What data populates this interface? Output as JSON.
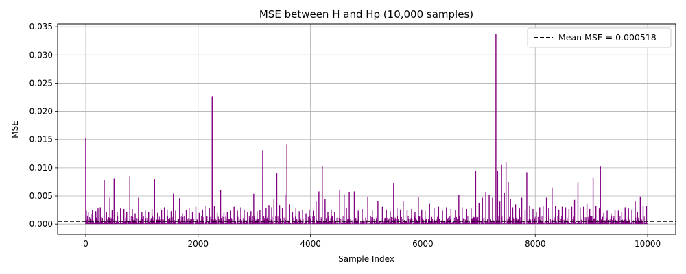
{
  "chart_data": {
    "type": "line",
    "title": "MSE between H and Hp (10,000 samples)",
    "xlabel": "Sample Index",
    "ylabel": "MSE",
    "xlim": [
      -500,
      10500
    ],
    "ylim": [
      -0.0018,
      0.0355
    ],
    "xticks": [
      0,
      2000,
      4000,
      6000,
      8000,
      10000
    ],
    "xtick_labels": [
      "0",
      "2000",
      "4000",
      "6000",
      "8000",
      "10000"
    ],
    "yticks": [
      0.0,
      0.005,
      0.01,
      0.015,
      0.02,
      0.025,
      0.03,
      0.035
    ],
    "ytick_labels": [
      "0.000",
      "0.005",
      "0.010",
      "0.015",
      "0.020",
      "0.025",
      "0.030",
      "0.035"
    ],
    "grid": true,
    "legend_position": "upper right",
    "series": [
      {
        "type": "line",
        "color": "#800080",
        "n_samples": 10000,
        "baseline_min": 5e-05,
        "baseline_max": 0.0015,
        "spikes": [
          [
            0,
            0.0153
          ],
          [
            10,
            0.0024
          ],
          [
            45,
            0.0021
          ],
          [
            95,
            0.0018
          ],
          [
            120,
            0.0025
          ],
          [
            180,
            0.0023
          ],
          [
            220,
            0.0028
          ],
          [
            260,
            0.003
          ],
          [
            330,
            0.0078
          ],
          [
            370,
            0.0022
          ],
          [
            430,
            0.0047
          ],
          [
            470,
            0.0025
          ],
          [
            505,
            0.0081
          ],
          [
            560,
            0.0021
          ],
          [
            620,
            0.0028
          ],
          [
            680,
            0.0027
          ],
          [
            730,
            0.0022
          ],
          [
            785,
            0.0085
          ],
          [
            830,
            0.0027
          ],
          [
            880,
            0.0019
          ],
          [
            940,
            0.0047
          ],
          [
            1000,
            0.0021
          ],
          [
            1060,
            0.0024
          ],
          [
            1120,
            0.0022
          ],
          [
            1180,
            0.0027
          ],
          [
            1225,
            0.0079
          ],
          [
            1280,
            0.002
          ],
          [
            1350,
            0.0025
          ],
          [
            1400,
            0.003
          ],
          [
            1450,
            0.0026
          ],
          [
            1520,
            0.0023
          ],
          [
            1560,
            0.0054
          ],
          [
            1600,
            0.0024
          ],
          [
            1670,
            0.0046
          ],
          [
            1720,
            0.0019
          ],
          [
            1790,
            0.0025
          ],
          [
            1840,
            0.0029
          ],
          [
            1900,
            0.0021
          ],
          [
            1960,
            0.0031
          ],
          [
            2020,
            0.002
          ],
          [
            2080,
            0.0026
          ],
          [
            2140,
            0.0033
          ],
          [
            2200,
            0.0029
          ],
          [
            2250,
            0.0227
          ],
          [
            2290,
            0.0033
          ],
          [
            2340,
            0.002
          ],
          [
            2400,
            0.0061
          ],
          [
            2460,
            0.002
          ],
          [
            2520,
            0.0021
          ],
          [
            2580,
            0.0024
          ],
          [
            2640,
            0.0031
          ],
          [
            2700,
            0.0024
          ],
          [
            2760,
            0.003
          ],
          [
            2820,
            0.0026
          ],
          [
            2880,
            0.0021
          ],
          [
            2940,
            0.0023
          ],
          [
            2990,
            0.0054
          ],
          [
            3050,
            0.0023
          ],
          [
            3100,
            0.0025
          ],
          [
            3150,
            0.0131
          ],
          [
            3210,
            0.0029
          ],
          [
            3260,
            0.0034
          ],
          [
            3310,
            0.003
          ],
          [
            3350,
            0.0044
          ],
          [
            3400,
            0.009
          ],
          [
            3450,
            0.0034
          ],
          [
            3500,
            0.0029
          ],
          [
            3550,
            0.0052
          ],
          [
            3580,
            0.0142
          ],
          [
            3630,
            0.0035
          ],
          [
            3680,
            0.0022
          ],
          [
            3740,
            0.0028
          ],
          [
            3800,
            0.0023
          ],
          [
            3860,
            0.0025
          ],
          [
            3920,
            0.0019
          ],
          [
            3980,
            0.0026
          ],
          [
            4050,
            0.0024
          ],
          [
            4100,
            0.004
          ],
          [
            4150,
            0.0058
          ],
          [
            4210,
            0.0103
          ],
          [
            4260,
            0.0045
          ],
          [
            4310,
            0.0022
          ],
          [
            4370,
            0.0026
          ],
          [
            4430,
            0.0021
          ],
          [
            4520,
            0.0061
          ],
          [
            4600,
            0.0053
          ],
          [
            4640,
            0.0029
          ],
          [
            4690,
            0.0057
          ],
          [
            4780,
            0.0058
          ],
          [
            4850,
            0.0024
          ],
          [
            4920,
            0.0027
          ],
          [
            5020,
            0.0049
          ],
          [
            5100,
            0.0025
          ],
          [
            5200,
            0.0041
          ],
          [
            5280,
            0.0031
          ],
          [
            5350,
            0.0026
          ],
          [
            5420,
            0.0023
          ],
          [
            5480,
            0.0073
          ],
          [
            5540,
            0.0028
          ],
          [
            5600,
            0.0026
          ],
          [
            5650,
            0.0041
          ],
          [
            5720,
            0.0025
          ],
          [
            5800,
            0.0027
          ],
          [
            5860,
            0.0022
          ],
          [
            5920,
            0.0048
          ],
          [
            5980,
            0.0026
          ],
          [
            6040,
            0.0024
          ],
          [
            6120,
            0.0036
          ],
          [
            6200,
            0.0028
          ],
          [
            6280,
            0.0031
          ],
          [
            6350,
            0.0024
          ],
          [
            6420,
            0.003
          ],
          [
            6500,
            0.0027
          ],
          [
            6580,
            0.0025
          ],
          [
            6640,
            0.0052
          ],
          [
            6700,
            0.003
          ],
          [
            6780,
            0.0027
          ],
          [
            6860,
            0.0028
          ],
          [
            6940,
            0.0094
          ],
          [
            7000,
            0.0038
          ],
          [
            7060,
            0.0047
          ],
          [
            7120,
            0.0056
          ],
          [
            7180,
            0.0052
          ],
          [
            7240,
            0.0047
          ],
          [
            7300,
            0.0337
          ],
          [
            7330,
            0.0095
          ],
          [
            7370,
            0.004
          ],
          [
            7400,
            0.0105
          ],
          [
            7450,
            0.0055
          ],
          [
            7480,
            0.011
          ],
          [
            7520,
            0.0075
          ],
          [
            7560,
            0.0045
          ],
          [
            7600,
            0.003
          ],
          [
            7650,
            0.0035
          ],
          [
            7720,
            0.0028
          ],
          [
            7760,
            0.0047
          ],
          [
            7820,
            0.0025
          ],
          [
            7850,
            0.0092
          ],
          [
            7900,
            0.0032
          ],
          [
            7960,
            0.0027
          ],
          [
            8020,
            0.0022
          ],
          [
            8080,
            0.003
          ],
          [
            8140,
            0.0032
          ],
          [
            8200,
            0.0047
          ],
          [
            8240,
            0.0029
          ],
          [
            8300,
            0.0065
          ],
          [
            8360,
            0.0032
          ],
          [
            8420,
            0.0026
          ],
          [
            8480,
            0.0031
          ],
          [
            8540,
            0.003
          ],
          [
            8600,
            0.0027
          ],
          [
            8650,
            0.0031
          ],
          [
            8700,
            0.0043
          ],
          [
            8760,
            0.0074
          ],
          [
            8800,
            0.003
          ],
          [
            8860,
            0.0031
          ],
          [
            8920,
            0.0036
          ],
          [
            8970,
            0.0027
          ],
          [
            9030,
            0.0082
          ],
          [
            9080,
            0.0032
          ],
          [
            9140,
            0.0028
          ],
          [
            9160,
            0.0102
          ],
          [
            9220,
            0.002
          ],
          [
            9280,
            0.0024
          ],
          [
            9350,
            0.0019
          ],
          [
            9420,
            0.0025
          ],
          [
            9480,
            0.0024
          ],
          [
            9540,
            0.0022
          ],
          [
            9600,
            0.003
          ],
          [
            9660,
            0.0028
          ],
          [
            9720,
            0.0026
          ],
          [
            9780,
            0.004
          ],
          [
            9820,
            0.0021
          ],
          [
            9870,
            0.0049
          ],
          [
            9920,
            0.0032
          ],
          [
            9980,
            0.0033
          ]
        ]
      },
      {
        "name": "Mean MSE = 0.000518",
        "type": "hline",
        "y": 0.000518,
        "color": "#000000",
        "style": "dashed"
      }
    ]
  }
}
